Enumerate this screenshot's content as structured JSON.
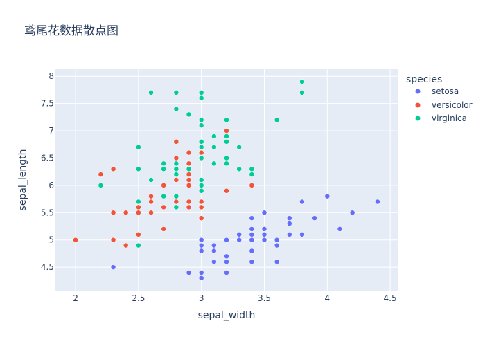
{
  "chart_data": {
    "type": "scatter",
    "title": "鸢尾花数据散点图",
    "xlabel": "sepal_width",
    "ylabel": "sepal_length",
    "xlim": [
      1.84,
      4.56
    ],
    "ylim": [
      4.07,
      8.13
    ],
    "x_ticks": [
      "2",
      "2.5",
      "3",
      "3.5",
      "4",
      "4.5"
    ],
    "y_ticks": [
      "4.5",
      "5",
      "5.5",
      "6",
      "6.5",
      "7",
      "7.5",
      "8"
    ],
    "grid": true,
    "legend": {
      "title": "species",
      "placement": "right",
      "labels": [
        "setosa",
        "versicolor",
        "virginica"
      ]
    },
    "series": [
      {
        "name": "setosa",
        "color": "#636efa",
        "points": [
          [
            3.5,
            5.1
          ],
          [
            3.0,
            4.9
          ],
          [
            3.2,
            4.7
          ],
          [
            3.1,
            4.6
          ],
          [
            3.6,
            5.0
          ],
          [
            3.9,
            5.4
          ],
          [
            3.4,
            4.6
          ],
          [
            3.4,
            5.0
          ],
          [
            2.9,
            4.4
          ],
          [
            3.1,
            4.9
          ],
          [
            3.7,
            5.4
          ],
          [
            3.4,
            4.8
          ],
          [
            3.0,
            4.8
          ],
          [
            3.0,
            4.3
          ],
          [
            4.0,
            5.8
          ],
          [
            4.4,
            5.7
          ],
          [
            3.9,
            5.4
          ],
          [
            3.5,
            5.1
          ],
          [
            3.8,
            5.7
          ],
          [
            3.8,
            5.1
          ],
          [
            3.4,
            5.4
          ],
          [
            3.7,
            5.1
          ],
          [
            3.6,
            4.6
          ],
          [
            3.3,
            5.1
          ],
          [
            3.4,
            4.8
          ],
          [
            3.0,
            5.0
          ],
          [
            3.4,
            5.0
          ],
          [
            3.5,
            5.2
          ],
          [
            3.4,
            5.2
          ],
          [
            3.2,
            4.7
          ],
          [
            3.1,
            4.8
          ],
          [
            3.4,
            5.4
          ],
          [
            4.1,
            5.2
          ],
          [
            4.2,
            5.5
          ],
          [
            3.1,
            4.9
          ],
          [
            3.2,
            5.0
          ],
          [
            3.5,
            5.5
          ],
          [
            3.6,
            4.9
          ],
          [
            3.0,
            4.4
          ],
          [
            3.4,
            5.1
          ],
          [
            3.5,
            5.0
          ],
          [
            2.3,
            4.5
          ],
          [
            3.2,
            4.4
          ],
          [
            3.5,
            5.0
          ],
          [
            3.8,
            5.1
          ],
          [
            3.0,
            4.8
          ],
          [
            3.8,
            5.1
          ],
          [
            3.2,
            4.6
          ],
          [
            3.7,
            5.3
          ],
          [
            3.3,
            5.0
          ]
        ]
      },
      {
        "name": "versicolor",
        "color": "#ef553b",
        "points": [
          [
            3.2,
            7.0
          ],
          [
            3.2,
            6.4
          ],
          [
            3.1,
            6.9
          ],
          [
            2.3,
            5.5
          ],
          [
            2.8,
            6.5
          ],
          [
            2.8,
            5.7
          ],
          [
            3.3,
            6.3
          ],
          [
            2.4,
            4.9
          ],
          [
            2.9,
            6.6
          ],
          [
            2.7,
            5.2
          ],
          [
            2.0,
            5.0
          ],
          [
            3.0,
            5.9
          ],
          [
            2.2,
            6.0
          ],
          [
            2.9,
            6.1
          ],
          [
            2.9,
            5.6
          ],
          [
            3.1,
            6.7
          ],
          [
            3.0,
            5.6
          ],
          [
            2.7,
            5.8
          ],
          [
            2.2,
            6.2
          ],
          [
            2.5,
            5.6
          ],
          [
            3.2,
            5.9
          ],
          [
            2.8,
            6.1
          ],
          [
            2.5,
            6.3
          ],
          [
            2.8,
            6.1
          ],
          [
            2.9,
            6.4
          ],
          [
            3.0,
            6.6
          ],
          [
            2.8,
            6.8
          ],
          [
            3.0,
            6.7
          ],
          [
            2.9,
            6.0
          ],
          [
            2.6,
            5.7
          ],
          [
            2.4,
            5.5
          ],
          [
            2.4,
            5.5
          ],
          [
            2.7,
            5.8
          ],
          [
            2.7,
            6.0
          ],
          [
            3.0,
            5.4
          ],
          [
            3.4,
            6.0
          ],
          [
            3.1,
            6.7
          ],
          [
            2.3,
            6.3
          ],
          [
            3.0,
            5.6
          ],
          [
            2.5,
            5.5
          ],
          [
            2.6,
            5.5
          ],
          [
            3.0,
            6.1
          ],
          [
            2.6,
            5.8
          ],
          [
            2.3,
            5.0
          ],
          [
            2.7,
            5.6
          ],
          [
            3.0,
            5.7
          ],
          [
            2.9,
            5.7
          ],
          [
            2.9,
            6.2
          ],
          [
            2.5,
            5.1
          ],
          [
            2.8,
            5.7
          ]
        ]
      },
      {
        "name": "virginica",
        "color": "#00cc96",
        "points": [
          [
            3.3,
            6.3
          ],
          [
            2.7,
            5.8
          ],
          [
            3.0,
            7.1
          ],
          [
            2.9,
            6.3
          ],
          [
            3.0,
            6.5
          ],
          [
            3.0,
            7.6
          ],
          [
            2.5,
            4.9
          ],
          [
            2.9,
            7.3
          ],
          [
            2.5,
            6.7
          ],
          [
            3.6,
            7.2
          ],
          [
            3.2,
            6.5
          ],
          [
            2.7,
            6.4
          ],
          [
            3.0,
            6.8
          ],
          [
            2.5,
            5.7
          ],
          [
            2.8,
            5.8
          ],
          [
            3.2,
            6.4
          ],
          [
            3.0,
            6.5
          ],
          [
            3.8,
            7.7
          ],
          [
            2.6,
            7.7
          ],
          [
            2.2,
            6.0
          ],
          [
            3.2,
            6.9
          ],
          [
            2.8,
            5.6
          ],
          [
            2.8,
            7.7
          ],
          [
            2.7,
            6.3
          ],
          [
            3.3,
            6.7
          ],
          [
            3.2,
            7.2
          ],
          [
            2.8,
            6.2
          ],
          [
            3.0,
            6.1
          ],
          [
            2.8,
            6.4
          ],
          [
            3.0,
            7.2
          ],
          [
            2.8,
            7.4
          ],
          [
            3.8,
            7.9
          ],
          [
            2.8,
            6.4
          ],
          [
            2.8,
            6.3
          ],
          [
            2.6,
            6.1
          ],
          [
            3.0,
            7.7
          ],
          [
            3.4,
            6.3
          ],
          [
            3.1,
            6.4
          ],
          [
            3.0,
            6.0
          ],
          [
            3.1,
            6.9
          ],
          [
            3.1,
            6.7
          ],
          [
            3.1,
            6.9
          ],
          [
            2.7,
            5.8
          ],
          [
            3.2,
            6.8
          ],
          [
            3.3,
            6.7
          ],
          [
            3.0,
            6.7
          ],
          [
            2.5,
            6.3
          ],
          [
            3.0,
            6.5
          ],
          [
            3.4,
            6.2
          ],
          [
            3.0,
            5.9
          ]
        ]
      }
    ]
  }
}
